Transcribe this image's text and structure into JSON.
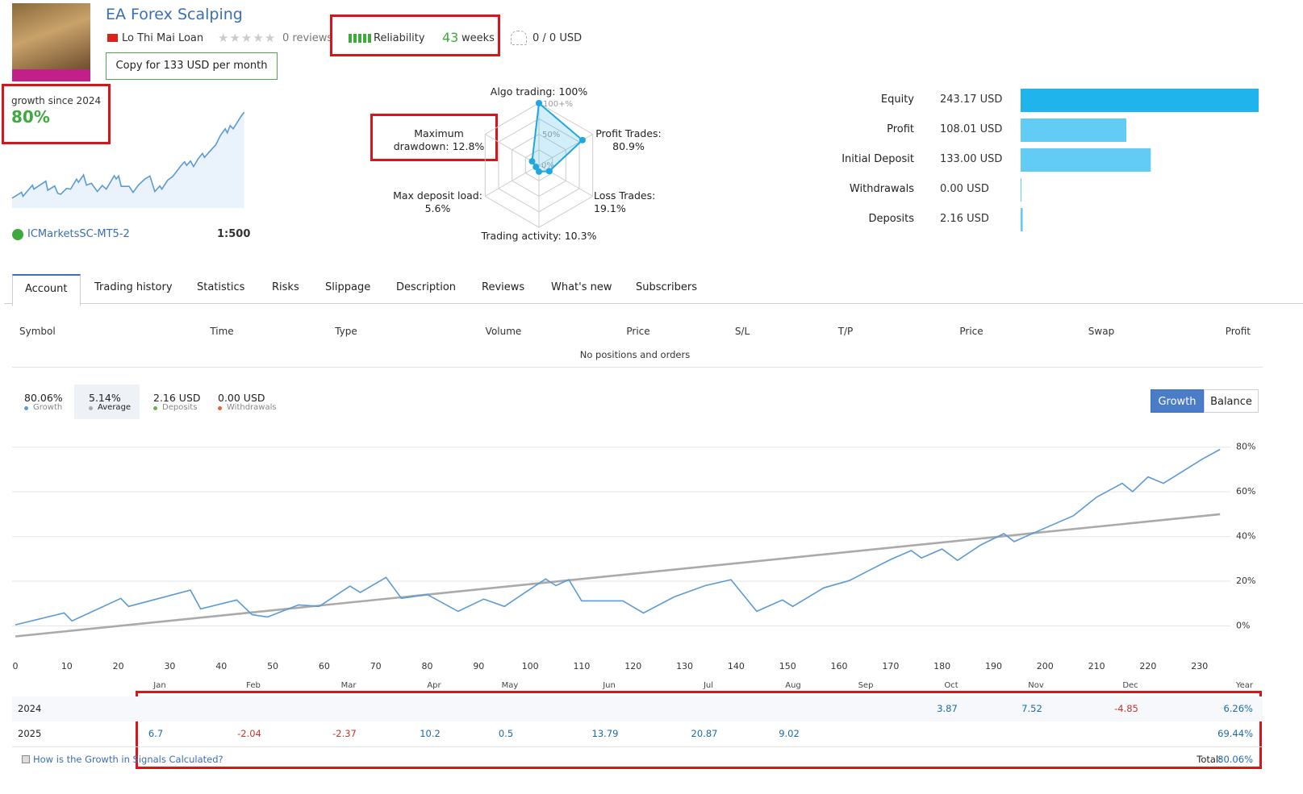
{
  "header": {
    "title": "EA Forex Scalping",
    "author": "Lo Thi Mai Loan",
    "reviews": "0 reviews",
    "reliability": "Reliability",
    "weeks": "43",
    "weeks_unit": "weeks",
    "funds": "0 / 0 USD",
    "copy_button": "Copy for 133 USD per month"
  },
  "growth_badge": {
    "label": "growth since 2024",
    "value": "80%",
    "broker": "ICMarketsSC-MT5-2",
    "leverage": "1:500"
  },
  "radar": {
    "scale_labels": [
      "100+%",
      "50%",
      "0%"
    ],
    "color": "#1fa8e0",
    "axes": [
      {
        "label": "Algo trading: 100%",
        "value": 100
      },
      {
        "label": "Profit Trades: 80.9%",
        "value": 80.9
      },
      {
        "label": "Loss Trades: 19.1%",
        "value": 19.1
      },
      {
        "label": "Trading activity: 10.3%",
        "value": 10.3
      },
      {
        "label": "Max deposit load: 5.6%",
        "value": 5.6
      },
      {
        "label": "Maximum drawdown: 12.8%",
        "value": 12.8
      }
    ]
  },
  "account": {
    "items": [
      {
        "label": "Equity",
        "value_label": "243.17 USD",
        "value": 243.17,
        "color": "#1fb5ec"
      },
      {
        "label": "Profit",
        "value_label": "108.01 USD",
        "value": 108.01,
        "color": "#62ccf5"
      },
      {
        "label": "Initial Deposit",
        "value_label": "133.00 USD",
        "value": 133,
        "color": "#62ccf5"
      },
      {
        "label": "Withdrawals",
        "value_label": "0.00 USD",
        "value": 0,
        "color": "#62ccf5"
      },
      {
        "label": "Deposits",
        "value_label": "2.16 USD",
        "value": 2.16,
        "color": "#62ccf5"
      }
    ]
  },
  "tabs": {
    "items": [
      "Account",
      "Trading history",
      "Statistics",
      "Risks",
      "Slippage",
      "Description",
      "Reviews",
      "What's new",
      "Subscribers"
    ],
    "active": 0
  },
  "positions": {
    "columns": [
      "Symbol",
      "Time",
      "Type",
      "Volume",
      "Price",
      "S/L",
      "T/P",
      "Price",
      "Swap",
      "Profit"
    ],
    "empty": "No positions and orders"
  },
  "toggle": {
    "items": [
      "Growth",
      "Balance"
    ],
    "active": 0
  },
  "chart_data": {
    "type": "line",
    "x": [
      0,
      9.5,
      11,
      20.5,
      22,
      34,
      36,
      43,
      46,
      49,
      55,
      59,
      65,
      67,
      72,
      75,
      80,
      86,
      91,
      95,
      99,
      103,
      105,
      107.5,
      110,
      114,
      118,
      122,
      128,
      134,
      139,
      144,
      149,
      151,
      157,
      162,
      166,
      170,
      174,
      176,
      180,
      183,
      187.5,
      192,
      194,
      199,
      205.5,
      210,
      215,
      217,
      220,
      223,
      226,
      230.5,
      234
    ],
    "series": [
      {
        "name": "Growth",
        "value_label": "80.06%",
        "color": "#5b9bd5",
        "values": [
          0.5,
          5.8,
          2.2,
          12.3,
          8.7,
          16,
          7.6,
          11.6,
          5,
          4,
          9.4,
          8.7,
          17.8,
          15,
          21.7,
          12.3,
          14,
          6.5,
          12,
          8.7,
          14.9,
          21,
          18,
          20.7,
          11.2,
          11.2,
          11.2,
          5.8,
          13,
          18,
          20.7,
          6.5,
          11.6,
          8.7,
          17,
          20.3,
          25,
          29.7,
          33.7,
          30.4,
          34.4,
          29.3,
          36.2,
          41.3,
          37.7,
          42.8,
          49.3,
          57.6,
          63.8,
          60.1,
          66.7,
          63.8,
          68.1,
          74.6,
          79
        ]
      },
      {
        "name": "Average",
        "value_label": "5.14%",
        "color": "#aaaaaa",
        "x": [
          0,
          234
        ],
        "values": [
          -4.7,
          50
        ]
      }
    ],
    "extra_stats": [
      {
        "name": "Deposits",
        "value_label": "2.16 USD",
        "color": "#6ab04c"
      },
      {
        "name": "Withdrawals",
        "value_label": "0.00 USD",
        "color": "#e8643c"
      }
    ],
    "xlim": [
      0,
      236
    ],
    "ylim": [
      -8.5,
      83.5
    ],
    "xticks": [
      0,
      10,
      20,
      30,
      40,
      50,
      60,
      70,
      80,
      90,
      100,
      110,
      120,
      130,
      140,
      150,
      160,
      170,
      180,
      190,
      200,
      210,
      220,
      230
    ],
    "yticks": [
      {
        "value": 0,
        "label": "0%"
      },
      {
        "value": 20,
        "label": "20%"
      },
      {
        "value": 40,
        "label": "40%"
      },
      {
        "value": 60,
        "label": "60%"
      },
      {
        "value": 80,
        "label": "80%"
      }
    ],
    "grid": true
  },
  "monthly": {
    "months": [
      "Jan",
      "Feb",
      "Mar",
      "Apr",
      "May",
      "Jun",
      "Jul",
      "Aug",
      "Sep",
      "Oct",
      "Nov",
      "Dec"
    ],
    "year_label": "Year",
    "rows": [
      {
        "year": "2024",
        "values": [
          null,
          null,
          null,
          null,
          null,
          null,
          null,
          null,
          null,
          3.87,
          7.52,
          -4.85
        ],
        "total": "6.26%"
      },
      {
        "year": "2025",
        "values": [
          6.7,
          -2.04,
          -2.37,
          10.2,
          0.5,
          13.79,
          20.87,
          9.02,
          null,
          null,
          null,
          null
        ],
        "total": "69.44%"
      }
    ],
    "help": "How is the Growth in Signals Calculated?",
    "total_label": "Total:",
    "total": "80.06%"
  }
}
